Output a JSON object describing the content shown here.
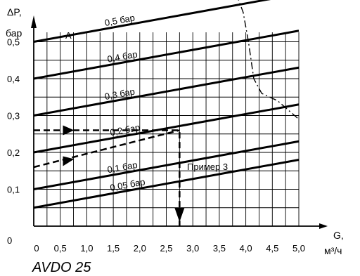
{
  "chart_data": {
    "type": "line",
    "title": "",
    "xlabel": "G,",
    "xlabel_unit": "м³/ч",
    "ylabel": "ΔP,",
    "ylabel_unit": "бар",
    "xlim": [
      0,
      5.0
    ],
    "ylim": [
      0,
      0.9
    ],
    "grid": true,
    "x_ticks": [
      "0",
      "0,5",
      "1,0",
      "1,5",
      "2,0",
      "2,5",
      "3,0",
      "3,5",
      "4,0",
      "4,5",
      "5,0"
    ],
    "x_tick_values": [
      0,
      0.5,
      1.0,
      1.5,
      2.0,
      2.5,
      3.0,
      3.5,
      4.0,
      4.5,
      5.0
    ],
    "y_ticks": [
      "0",
      "0,1",
      "0,2",
      "0,3",
      "0,4",
      "0,5"
    ],
    "y_tick_values": [
      0,
      0.1,
      0.2,
      0.3,
      0.4,
      0.5
    ],
    "series": [
      {
        "name": "0,5 бар",
        "x": [
          0,
          5.0
        ],
        "y": [
          0.5,
          0.63
        ]
      },
      {
        "name": "0,4 бар",
        "x": [
          0,
          5.0
        ],
        "y": [
          0.4,
          0.53
        ]
      },
      {
        "name": "0,3 бар",
        "x": [
          0,
          5.0
        ],
        "y": [
          0.3,
          0.43
        ]
      },
      {
        "name": "0,2 бар",
        "x": [
          0,
          5.0
        ],
        "y": [
          0.2,
          0.33
        ]
      },
      {
        "name": "0,1 бар",
        "x": [
          0,
          5.0
        ],
        "y": [
          0.1,
          0.23
        ]
      },
      {
        "name": "0,05 бар",
        "x": [
          0,
          5.0
        ],
        "y": [
          0.05,
          0.18
        ]
      }
    ],
    "limit_curve": {
      "x": [
        3.82,
        3.95,
        4.05,
        4.1,
        4.15,
        4.3,
        4.6,
        5.0
      ],
      "y": [
        0.63,
        0.58,
        0.5,
        0.45,
        0.4,
        0.36,
        0.34,
        0.29
      ]
    },
    "example": {
      "label": "Пример 3",
      "x": [
        0,
        2.75,
        2.75
      ],
      "y": [
        0.26,
        0.26,
        0.0
      ],
      "secondary": {
        "x": [
          0,
          2.75
        ],
        "y": [
          0.16,
          0.26
        ]
      }
    },
    "annotations": [
      {
        "text": "A",
        "x": 0.65,
        "y": 0.52
      }
    ]
  },
  "caption": "AVDO 25"
}
